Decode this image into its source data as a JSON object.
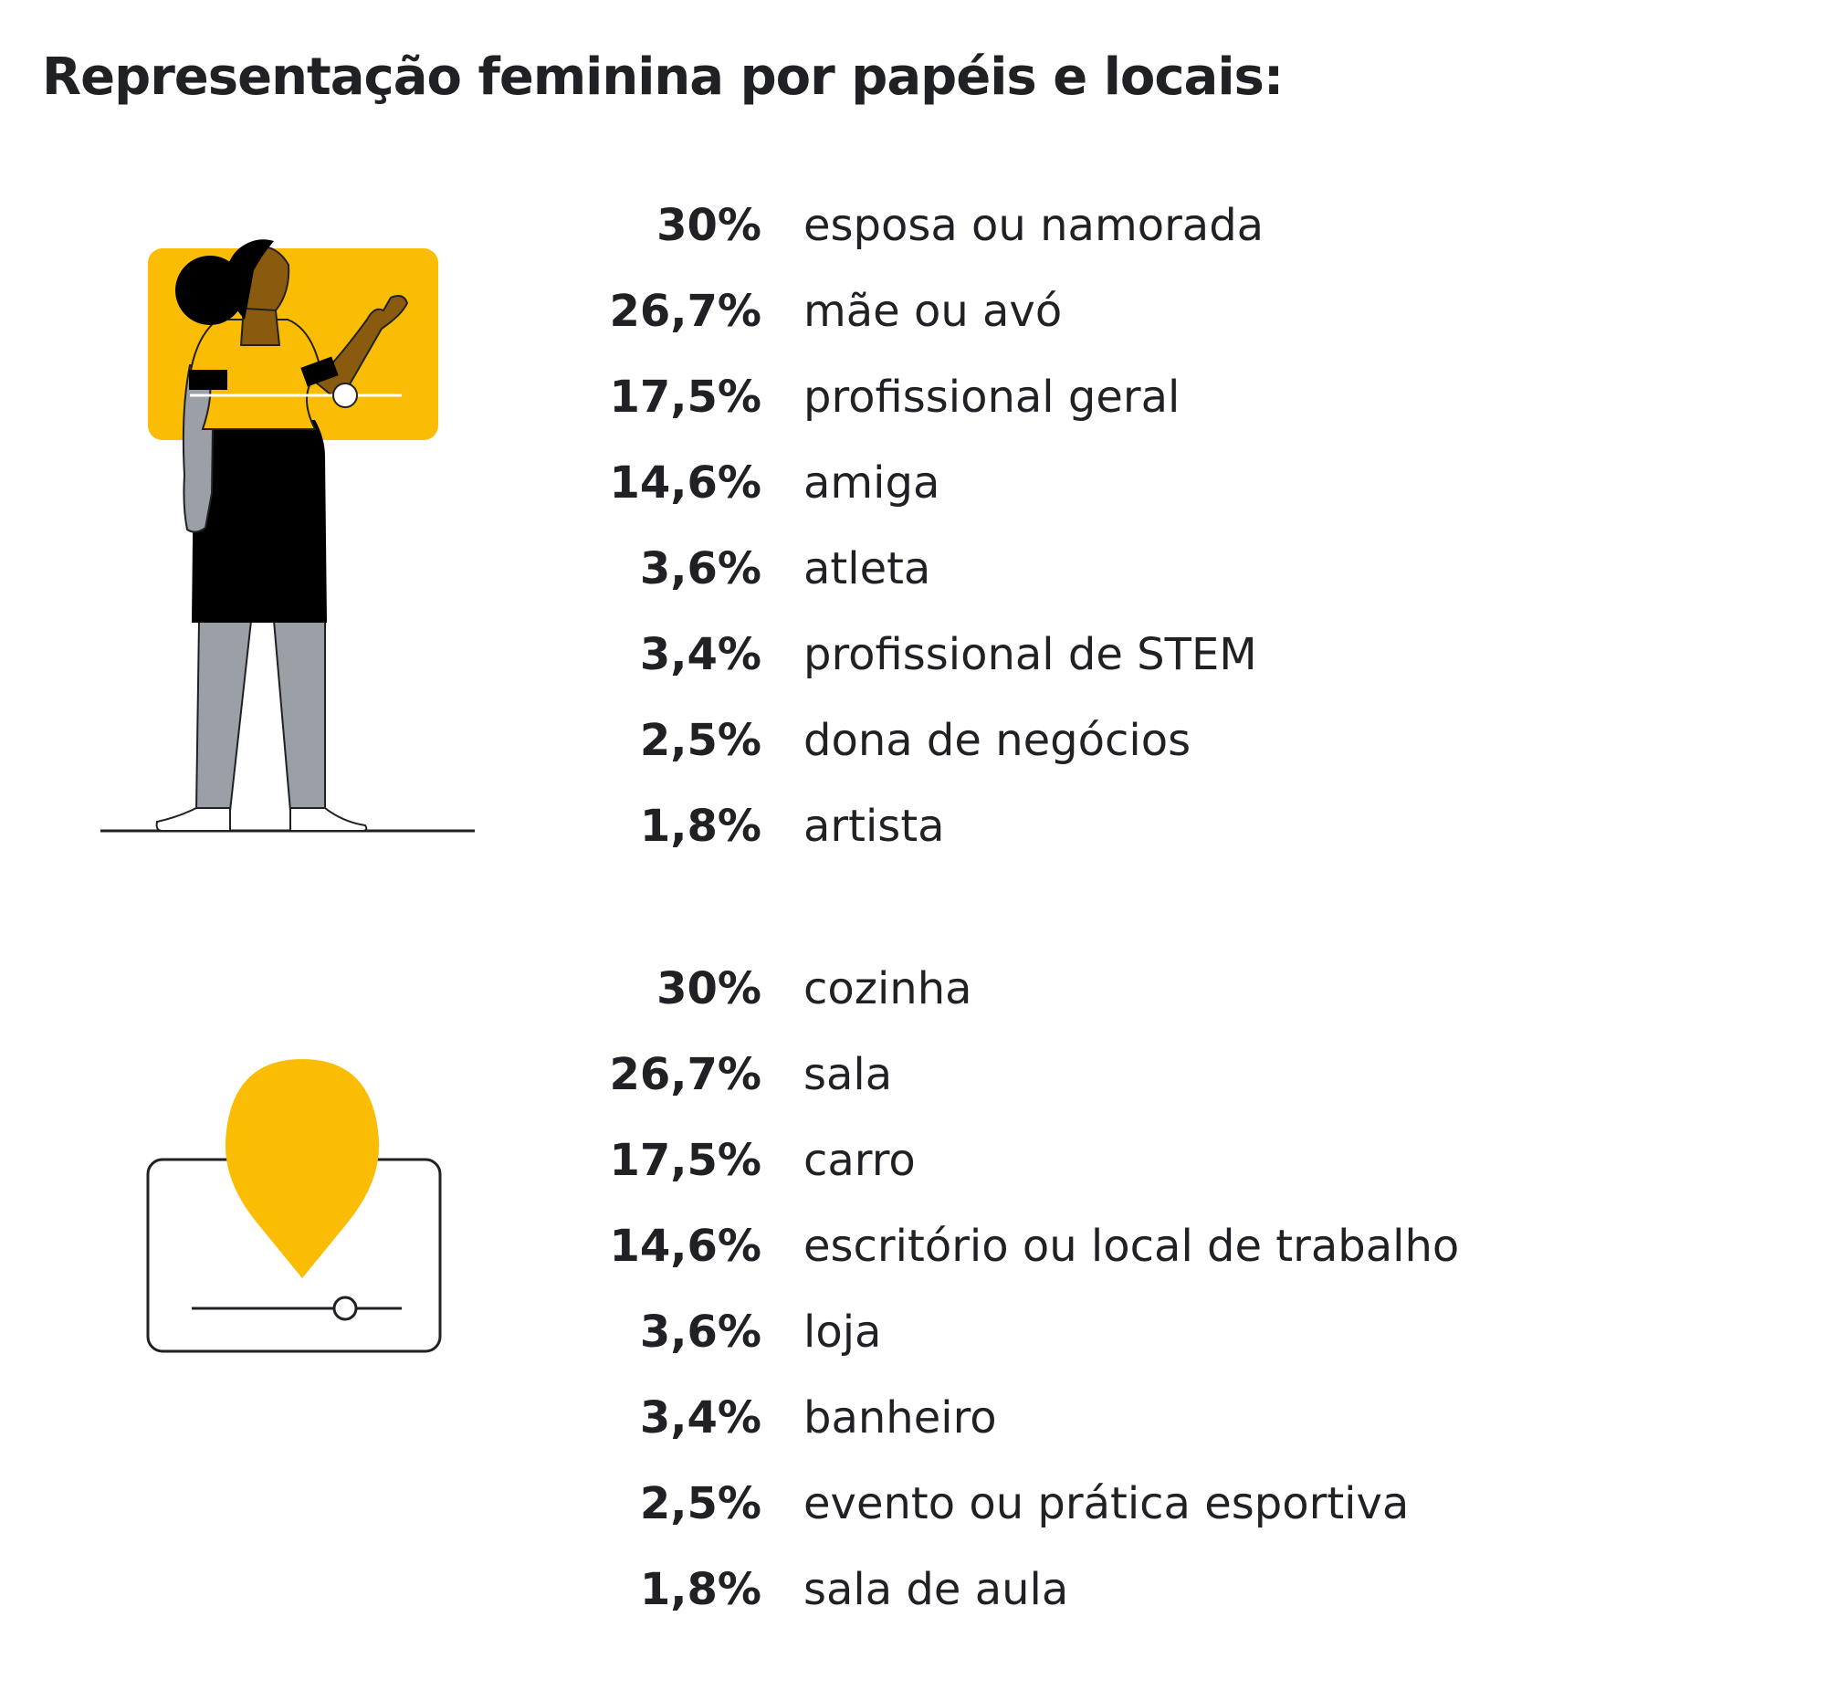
{
  "title": "Representação feminina por papéis e locais:",
  "colors": {
    "accent": "#FBBC04",
    "text": "#202124",
    "skin": "#8A5A0E",
    "gray": "#9AA0A6"
  },
  "icons": {
    "roles": "woman-figure-icon",
    "places": "location-pin-icon"
  },
  "roles": [
    {
      "percent": "30%",
      "label": "esposa ou namorada"
    },
    {
      "percent": "26,7%",
      "label": "mãe ou avó"
    },
    {
      "percent": "17,5%",
      "label": "profissional geral"
    },
    {
      "percent": "14,6%",
      "label": "amiga"
    },
    {
      "percent": "3,6%",
      "label": "atleta"
    },
    {
      "percent": "3,4%",
      "label": "profissional de STEM"
    },
    {
      "percent": "2,5%",
      "label": "dona de negócios"
    },
    {
      "percent": "1,8%",
      "label": "artista"
    }
  ],
  "places": [
    {
      "percent": "30%",
      "label": "cozinha"
    },
    {
      "percent": "26,7%",
      "label": "sala"
    },
    {
      "percent": "17,5%",
      "label": "carro"
    },
    {
      "percent": "14,6%",
      "label": "escritório ou local de trabalho"
    },
    {
      "percent": "3,6%",
      "label": "loja"
    },
    {
      "percent": "3,4%",
      "label": "banheiro"
    },
    {
      "percent": "2,5%",
      "label": "evento ou prática esportiva"
    },
    {
      "percent": "1,8%",
      "label": "sala de aula"
    }
  ]
}
